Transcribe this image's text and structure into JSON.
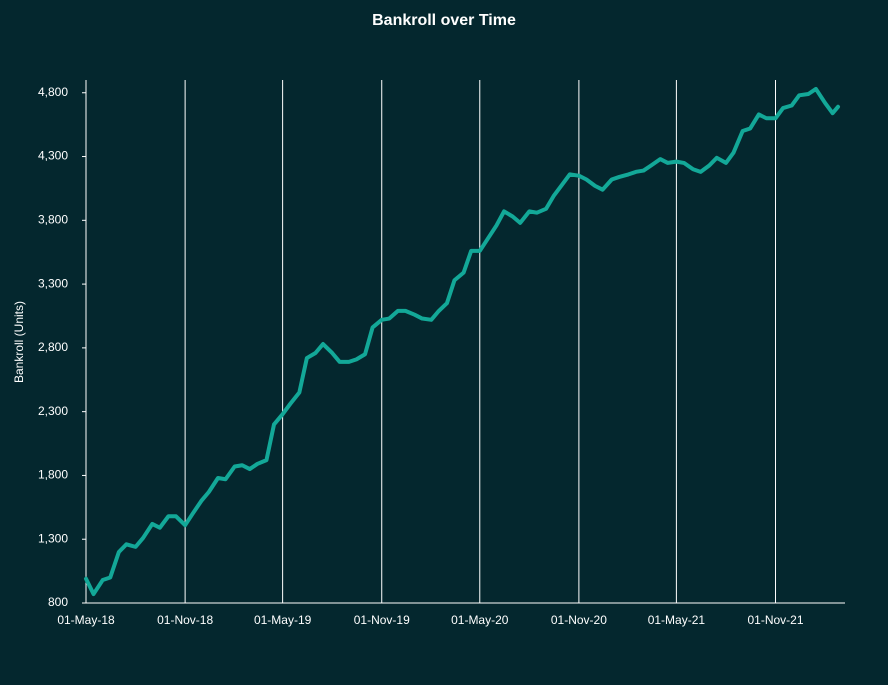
{
  "chart_data": {
    "type": "line",
    "title": "Bankroll over Time",
    "y_label": "Bankroll  (Units)",
    "x": [
      "2018-05-01",
      "2018-05-15",
      "2018-06-01",
      "2018-06-15",
      "2018-07-01",
      "2018-07-15",
      "2018-08-01",
      "2018-08-15",
      "2018-09-01",
      "2018-09-15",
      "2018-10-01",
      "2018-10-15",
      "2018-11-01",
      "2018-11-15",
      "2018-12-01",
      "2018-12-15",
      "2019-01-01",
      "2019-01-15",
      "2019-02-01",
      "2019-02-15",
      "2019-03-01",
      "2019-03-15",
      "2019-04-01",
      "2019-04-15",
      "2019-05-01",
      "2019-05-15",
      "2019-06-01",
      "2019-06-15",
      "2019-07-01",
      "2019-07-15",
      "2019-08-01",
      "2019-08-15",
      "2019-09-01",
      "2019-09-15",
      "2019-10-01",
      "2019-10-15",
      "2019-11-01",
      "2019-11-15",
      "2019-12-01",
      "2019-12-15",
      "2020-01-01",
      "2020-01-15",
      "2020-02-01",
      "2020-02-15",
      "2020-03-01",
      "2020-03-15",
      "2020-04-01",
      "2020-04-15",
      "2020-05-01",
      "2020-05-15",
      "2020-06-01",
      "2020-06-15",
      "2020-07-01",
      "2020-07-15",
      "2020-08-01",
      "2020-08-15",
      "2020-09-01",
      "2020-09-15",
      "2020-10-01",
      "2020-10-15",
      "2020-11-01",
      "2020-11-15",
      "2020-12-01",
      "2020-12-15",
      "2021-01-01",
      "2021-01-15",
      "2021-02-01",
      "2021-02-15",
      "2021-03-01",
      "2021-03-15",
      "2021-04-01",
      "2021-04-15",
      "2021-05-01",
      "2021-05-15",
      "2021-06-01",
      "2021-06-15",
      "2021-07-01",
      "2021-07-15",
      "2021-08-01",
      "2021-08-15",
      "2021-09-01",
      "2021-09-15",
      "2021-10-01",
      "2021-10-15",
      "2021-11-01",
      "2021-11-15",
      "2021-12-01",
      "2021-12-15",
      "2022-01-01",
      "2022-01-15",
      "2022-02-01",
      "2022-02-15",
      "2022-02-25"
    ],
    "series": [
      {
        "name": "Bankroll",
        "color": "#13a898",
        "values": [
          990,
          870,
          980,
          1000,
          1200,
          1260,
          1240,
          1310,
          1420,
          1390,
          1480,
          1480,
          1410,
          1500,
          1600,
          1670,
          1780,
          1770,
          1870,
          1880,
          1850,
          1890,
          1920,
          2200,
          2280,
          2360,
          2450,
          2720,
          2760,
          2830,
          2760,
          2690,
          2690,
          2710,
          2750,
          2960,
          3020,
          3030,
          3090,
          3090,
          3060,
          3030,
          3020,
          3090,
          3150,
          3330,
          3390,
          3560,
          3560,
          3650,
          3760,
          3870,
          3830,
          3780,
          3870,
          3860,
          3890,
          3990,
          4080,
          4160,
          4150,
          4120,
          4070,
          4040,
          4120,
          4140,
          4160,
          4180,
          4190,
          4230,
          4280,
          4250,
          4260,
          4250,
          4200,
          4180,
          4230,
          4290,
          4250,
          4330,
          4500,
          4520,
          4630,
          4600,
          4600,
          4680,
          4700,
          4780,
          4790,
          4830,
          4720,
          4640,
          4690
        ]
      }
    ],
    "xlim": [
      "2018-05-01",
      "2022-03-10"
    ],
    "xticks": [
      {
        "value": "2018-05-01",
        "label": "01-May-18"
      },
      {
        "value": "2018-11-01",
        "label": "01-Nov-18"
      },
      {
        "value": "2019-05-01",
        "label": "01-May-19"
      },
      {
        "value": "2019-11-01",
        "label": "01-Nov-19"
      },
      {
        "value": "2020-05-01",
        "label": "01-May-20"
      },
      {
        "value": "2020-11-01",
        "label": "01-Nov-20"
      },
      {
        "value": "2021-05-01",
        "label": "01-May-21"
      },
      {
        "value": "2021-11-01",
        "label": "01-Nov-21"
      }
    ],
    "ylim": [
      800,
      4900
    ],
    "yticks": [
      800,
      {
        "value": 1300,
        "label": "1,300"
      },
      {
        "value": 1800,
        "label": "1,800"
      },
      {
        "value": 2300,
        "label": "2,300"
      },
      {
        "value": 2800,
        "label": "2,800"
      },
      {
        "value": 3300,
        "label": "3,300"
      },
      {
        "value": 3800,
        "label": "3,800"
      },
      {
        "value": 4300,
        "label": "4,300"
      },
      {
        "value": 4800,
        "label": "4,800"
      }
    ],
    "x_grid": true
  }
}
